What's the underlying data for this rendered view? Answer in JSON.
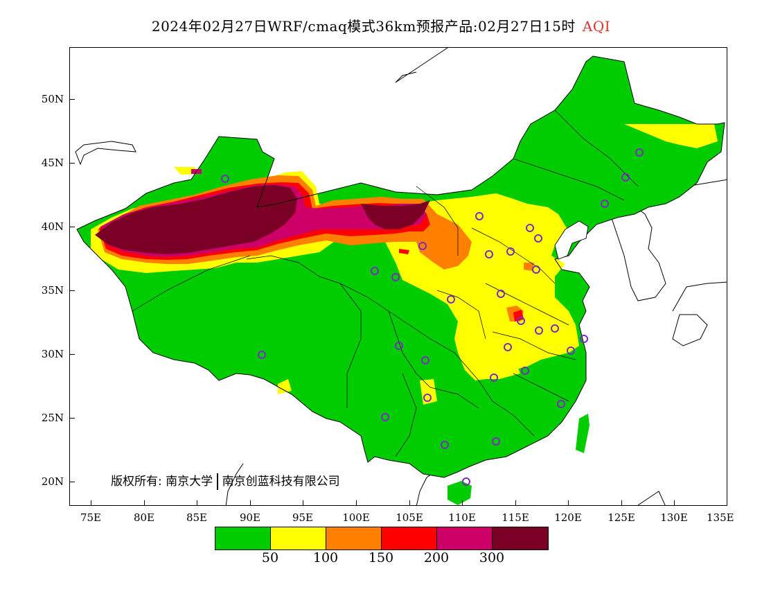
{
  "title": {
    "text": "2024年02月27日WRF/cmaq模式36km预报产品:02月27日15时",
    "variable": "AQI",
    "variable_color": "#e0302a"
  },
  "axes": {
    "lat_labels": [
      "50N",
      "45N",
      "40N",
      "35N",
      "30N",
      "25N",
      "20N"
    ],
    "lat_values": [
      50,
      45,
      40,
      35,
      30,
      25,
      20
    ],
    "lon_labels": [
      "75E",
      "80E",
      "85E",
      "90E",
      "95E",
      "100E",
      "105E",
      "110E",
      "115E",
      "120E",
      "125E",
      "130E",
      "135E"
    ],
    "lon_values": [
      75,
      80,
      85,
      90,
      95,
      100,
      105,
      110,
      115,
      120,
      125,
      130,
      135
    ],
    "lon_range": [
      73,
      135
    ],
    "lat_range": [
      18,
      54
    ]
  },
  "copyright": {
    "left": "版权所有: 南京大学",
    "right": "南京创蓝科技有限公司"
  },
  "legend": {
    "labels": [
      "50",
      "100",
      "150",
      "200",
      "300"
    ],
    "colors": [
      "#00cc00",
      "#ffff00",
      "#ff8000",
      "#ff0000",
      "#cc0066",
      "#7a0026"
    ],
    "categories": [
      "0-50",
      "50-100",
      "100-150",
      "150-200",
      "200-300",
      ">300"
    ]
  },
  "station_color": "#7b2cbf"
}
